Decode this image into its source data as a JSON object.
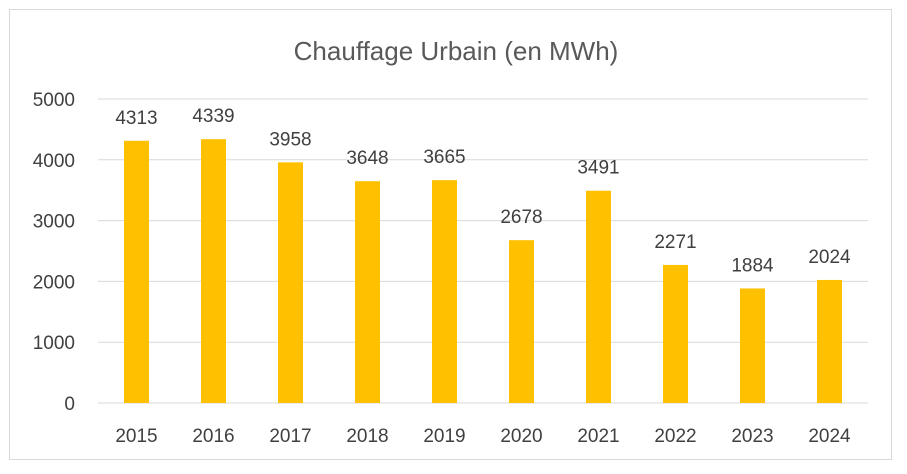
{
  "chart_data": {
    "type": "bar",
    "title": "Chauffage Urbain (en MWh)",
    "xlabel": "",
    "ylabel": "",
    "categories": [
      "2015",
      "2016",
      "2017",
      "2018",
      "2019",
      "2020",
      "2021",
      "2022",
      "2023",
      "2024"
    ],
    "values": [
      4313,
      4339,
      3958,
      3648,
      3665,
      2678,
      3491,
      2271,
      1884,
      2024
    ],
    "ylim": [
      0,
      5000
    ],
    "yticks": [
      "0",
      "1000",
      "2000",
      "3000",
      "4000",
      "5000"
    ],
    "grid": true,
    "legend": "none",
    "data_labels": true,
    "bar_color": "#FFC000"
  },
  "colors": {
    "bar": "#FFC000",
    "grid": "#d9d9d9",
    "text": "#404040",
    "title": "#595959"
  }
}
